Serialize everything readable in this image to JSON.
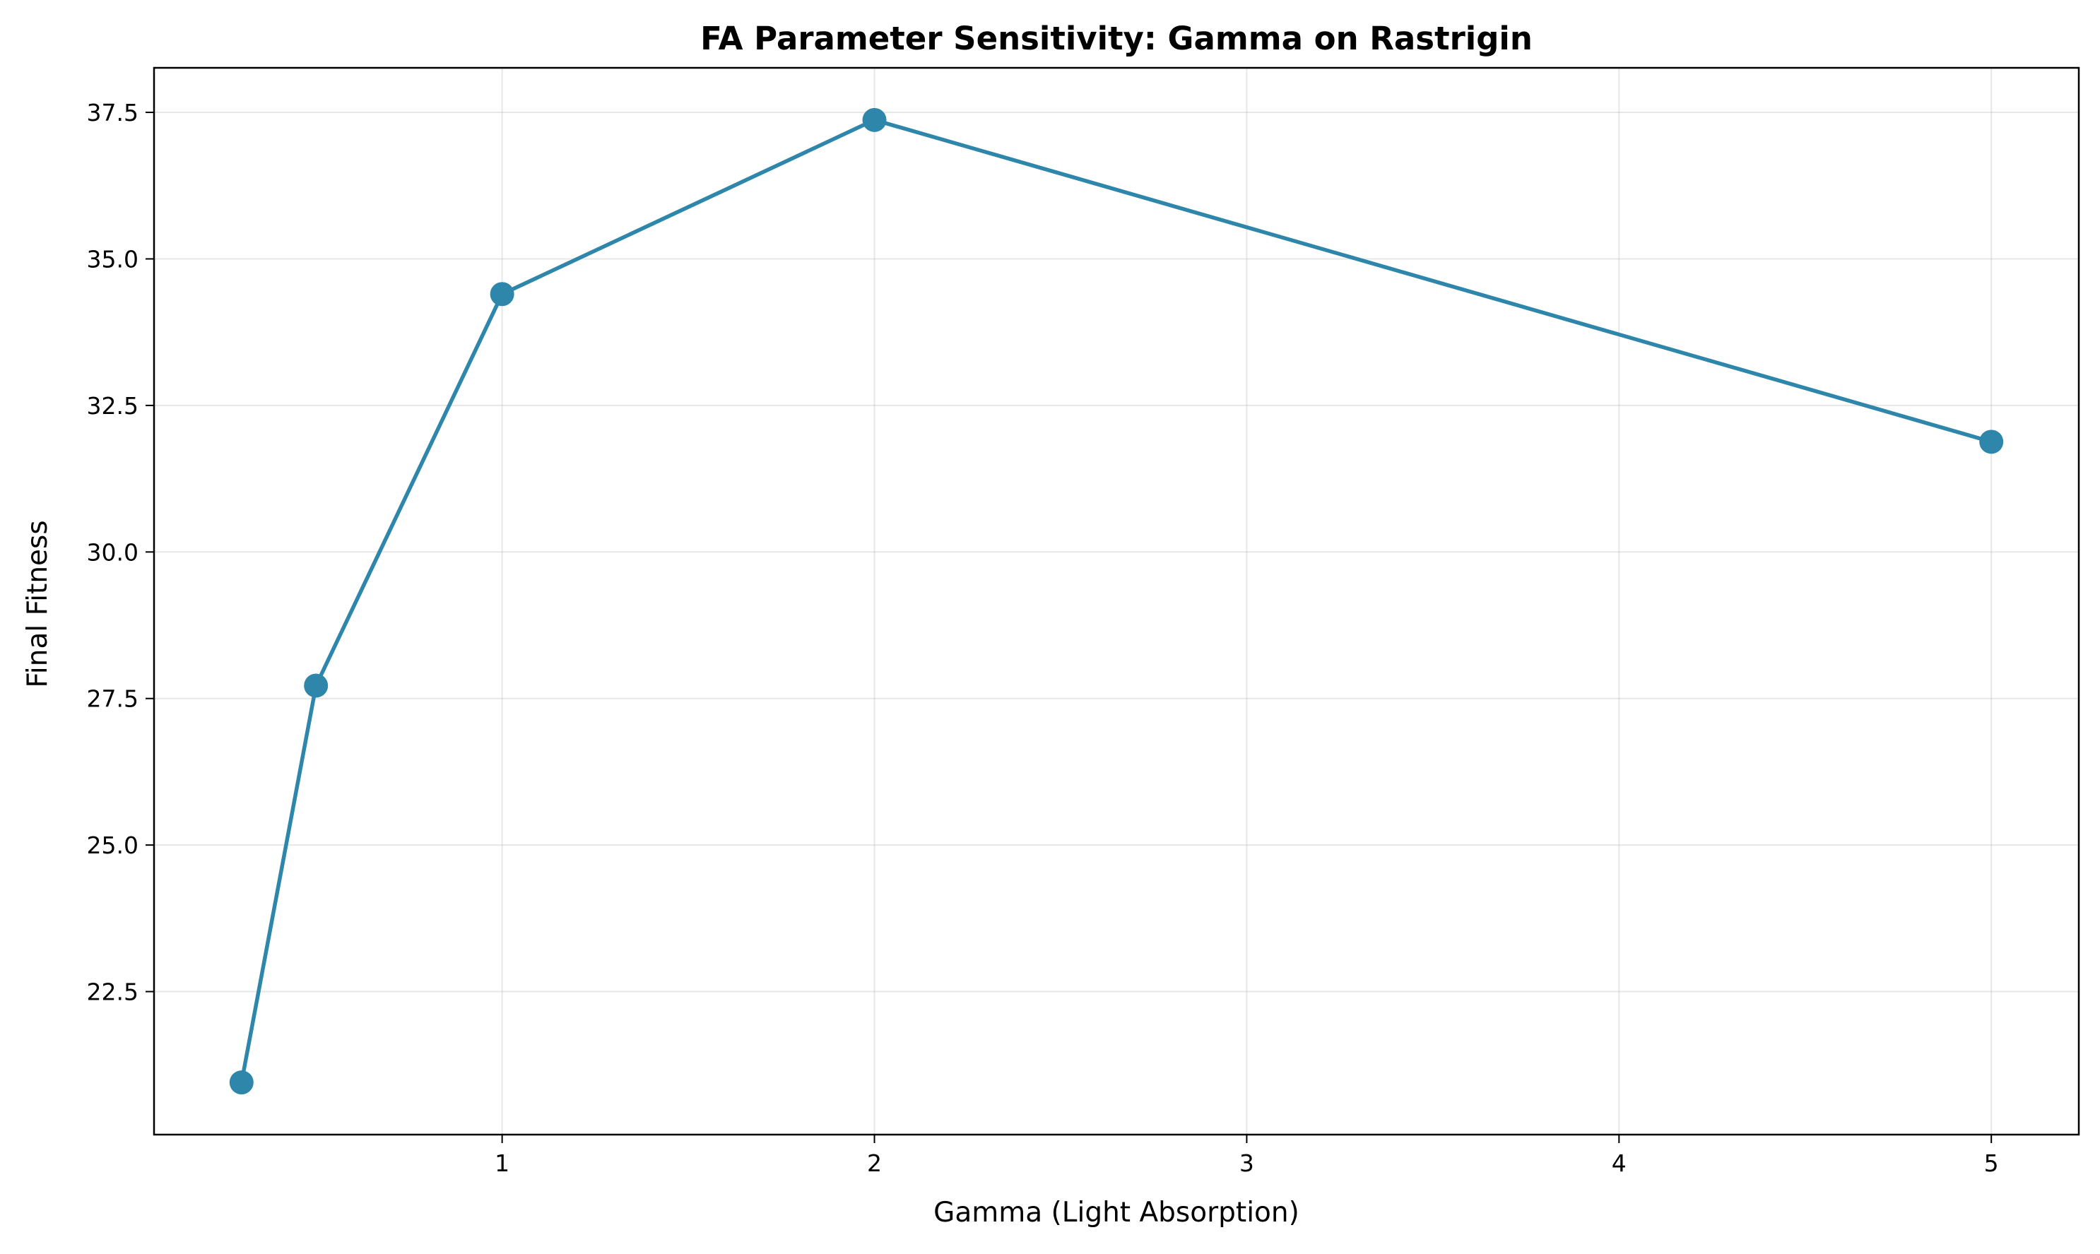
{
  "chart_data": {
    "type": "line",
    "title": "FA Parameter Sensitivity: Gamma on Rastrigin",
    "xlabel": "Gamma (Light Absorption)",
    "ylabel": "Final Fitness",
    "x": [
      0.3,
      0.5,
      1,
      2,
      5
    ],
    "series": [
      {
        "values": [
          20.95,
          27.72,
          34.4,
          37.37,
          31.88
        ],
        "color": "#2e86ab",
        "marker": "circle"
      }
    ],
    "xlim": [
      0.065,
      5.235
    ],
    "ylim": [
      20.06,
      38.26
    ],
    "x_ticks": [
      {
        "value": 1,
        "label": "1"
      },
      {
        "value": 2,
        "label": "2"
      },
      {
        "value": 3,
        "label": "3"
      },
      {
        "value": 4,
        "label": "4"
      },
      {
        "value": 5,
        "label": "5"
      }
    ],
    "y_ticks": [
      {
        "value": 22.5,
        "label": "22.5"
      },
      {
        "value": 25.0,
        "label": "25.0"
      },
      {
        "value": 27.5,
        "label": "27.5"
      },
      {
        "value": 30.0,
        "label": "30.0"
      },
      {
        "value": 32.5,
        "label": "32.5"
      },
      {
        "value": 35.0,
        "label": "35.0"
      },
      {
        "value": 37.5,
        "label": "37.5"
      }
    ],
    "grid": true,
    "legend": "none"
  }
}
